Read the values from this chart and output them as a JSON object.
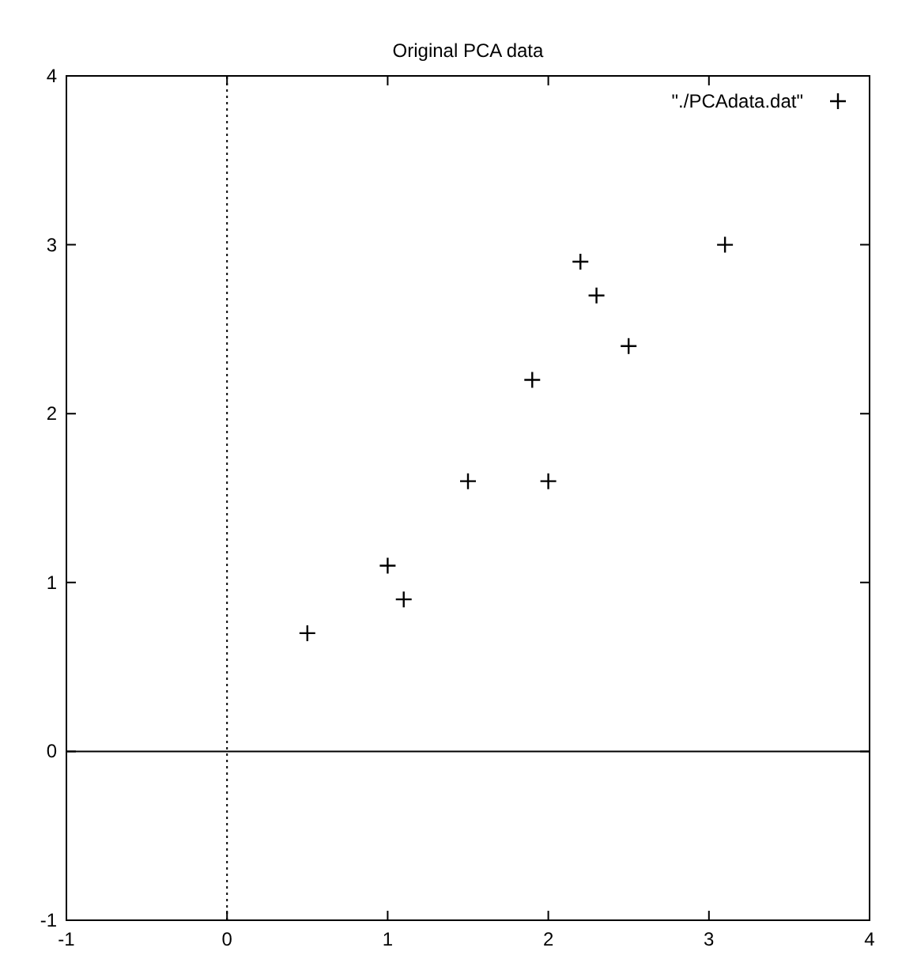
{
  "chart_data": {
    "type": "scatter",
    "title": "Original PCA data",
    "x": [
      2.5,
      0.5,
      2.2,
      1.9,
      3.1,
      2.3,
      2,
      1,
      1.5,
      1.1
    ],
    "series": [
      {
        "name": "\"./PCAdata.dat\"",
        "color": "#000000",
        "values": [
          2.4,
          0.7,
          2.9,
          2.2,
          3.0,
          2.7,
          1.6,
          1.1,
          1.6,
          0.9
        ]
      }
    ],
    "xlim": [
      -1,
      4
    ],
    "xticks": [
      -1,
      0,
      1,
      2,
      3,
      4
    ],
    "ylim": [
      -1,
      4
    ],
    "yticks": [
      -1,
      0,
      1,
      2,
      3,
      4
    ],
    "ref_lines": [
      {
        "axis": "x",
        "value": 0,
        "line_style": "dotted"
      },
      {
        "axis": "y",
        "value": 0,
        "line_style": "solid"
      }
    ],
    "marker": "cross",
    "legend": "top right",
    "grid": false
  }
}
